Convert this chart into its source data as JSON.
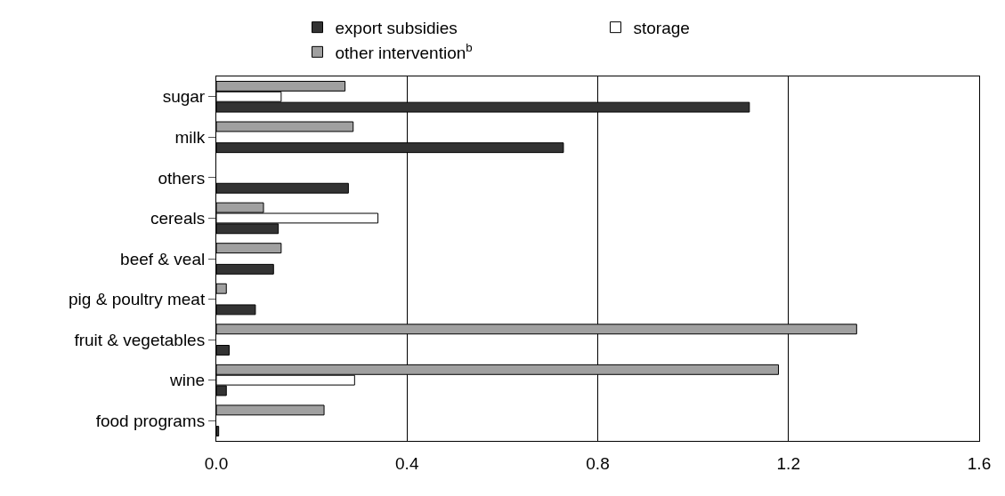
{
  "chart_data": {
    "type": "bar",
    "orientation": "horizontal",
    "categories": [
      "sugar",
      "milk",
      "others",
      "cereals",
      "beef & veal",
      "pig & poultry meat",
      "fruit & vegetables",
      "wine",
      "food programs"
    ],
    "series": [
      {
        "name": "export subsidies",
        "color": "#333333",
        "values": [
          1.118,
          0.728,
          0.277,
          0.13,
          0.12,
          0.082,
          0.027,
          0.021,
          0.005
        ]
      },
      {
        "name": "storage",
        "color": "#ffffff",
        "values": [
          0.136,
          null,
          null,
          0.339,
          null,
          null,
          null,
          0.29,
          null
        ]
      },
      {
        "name": "other intervention$^{b}$",
        "color": "#a0a0a0",
        "values": [
          0.27,
          0.287,
          null,
          0.099,
          0.136,
          0.021,
          1.343,
          1.179,
          0.226
        ]
      }
    ],
    "xlim": [
      0,
      1.6
    ],
    "xticks": [
      {
        "value": 0,
        "label": "0.0"
      },
      0.4,
      0.8,
      1.2,
      1.6
    ],
    "grid": "x",
    "legend": "top"
  }
}
